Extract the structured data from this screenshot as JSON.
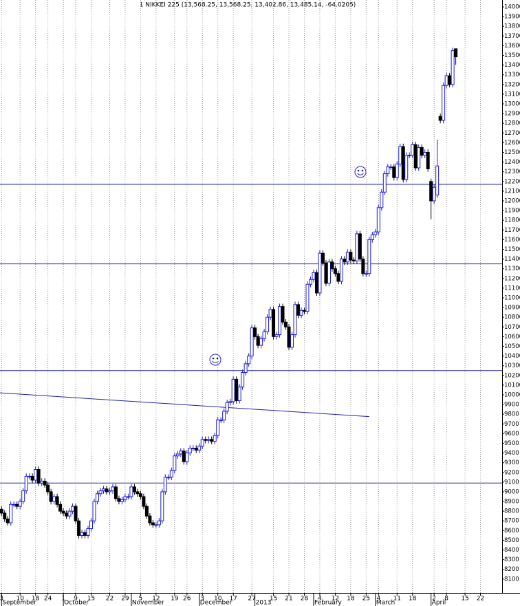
{
  "chart_data": {
    "type": "candlestick",
    "title": "1 NIKKEI 225 (13,568.25, 13,568.25, 13,402.86, 13,485.14, -64.0205)",
    "up_color": "#1a1adc",
    "down_color": "#000000",
    "line_color": "#2020b0",
    "grid": "x",
    "xlim": [
      -0.5,
      162
    ],
    "ylim": [
      7957,
      14071
    ],
    "x": [
      0,
      1,
      2,
      3,
      4,
      5,
      6,
      7,
      8,
      9,
      10,
      11,
      12,
      13,
      14,
      15,
      16,
      17,
      18,
      19,
      20,
      21,
      22,
      23,
      24,
      25,
      26,
      27,
      28,
      29,
      30,
      31,
      32,
      33,
      34,
      35,
      36,
      37,
      38,
      39,
      40,
      41,
      42,
      43,
      44,
      45,
      46,
      47,
      48,
      49,
      50,
      51,
      52,
      53,
      54,
      55,
      56,
      57,
      58,
      59,
      60,
      61,
      62,
      63,
      64,
      65,
      66,
      67,
      68,
      69,
      70,
      71,
      72,
      73,
      74,
      75,
      76,
      77,
      78,
      79,
      80,
      81,
      82,
      83,
      84,
      85,
      86,
      87,
      88,
      89,
      90,
      91,
      92,
      93,
      94,
      95,
      96,
      97,
      98,
      99,
      100,
      101,
      102,
      103,
      104,
      105,
      106,
      107,
      108,
      109,
      110,
      111,
      112,
      113,
      114,
      115,
      116,
      117,
      118,
      119,
      120,
      121,
      122,
      123,
      124,
      125,
      126,
      127,
      128,
      129,
      130,
      131,
      132,
      133,
      134,
      135,
      136,
      137,
      138,
      139,
      140,
      141,
      142,
      143,
      144,
      145,
      146,
      147
    ],
    "open": [
      8820,
      8780,
      8720,
      8680,
      8870,
      8870,
      8850,
      8900,
      9010,
      9160,
      9160,
      9120,
      9230,
      9090,
      9110,
      9070,
      9000,
      8900,
      8950,
      8870,
      8800,
      8780,
      8750,
      8800,
      8850,
      8700,
      8550,
      8580,
      8550,
      8620,
      8700,
      8900,
      8980,
      9010,
      9030,
      9000,
      9010,
      9050,
      8930,
      8900,
      8920,
      8950,
      8950,
      9050,
      9000,
      8980,
      8950,
      8850,
      8750,
      8680,
      8660,
      8660,
      8700,
      9000,
      9150,
      9150,
      9220,
      9370,
      9390,
      9420,
      9310,
      9400,
      9450,
      9450,
      9430,
      9470,
      9540,
      9530,
      9540,
      9520,
      9580,
      9740,
      9740,
      9830,
      9920,
      9930,
      10160,
      9940,
      10080,
      10230,
      10320,
      10400,
      10690,
      10600,
      10510,
      10580,
      10650,
      10800,
      10880,
      10600,
      10620,
      10910,
      10750,
      10700,
      10490,
      10620,
      10930,
      10820,
      10870,
      10860,
      11140,
      11190,
      11260,
      11050,
      11460,
      11360,
      11150,
      11370,
      11300,
      11250,
      11170,
      11400,
      11370,
      11470,
      11390,
      11380,
      11660,
      11400,
      11250,
      11250,
      11600,
      11650,
      11680,
      11930,
      12090,
      12280,
      12350,
      12350,
      12240,
      12380,
      12560,
      12220,
      12470,
      12470,
      12580,
      12340,
      12550,
      12470,
      12500,
      12200,
      12000,
      12060,
      12870,
      12830,
      13190,
      13290,
      13200,
      13568.25
    ],
    "high": [
      8850,
      8810,
      8750,
      8900,
      8900,
      8900,
      8930,
      9040,
      9190,
      9190,
      9190,
      9260,
      9260,
      9140,
      9140,
      9100,
      9030,
      8980,
      8980,
      8900,
      8830,
      8810,
      8830,
      8880,
      8880,
      8730,
      8610,
      8610,
      8650,
      8730,
      8930,
      9010,
      9040,
      9060,
      9060,
      9040,
      9080,
      9080,
      8960,
      8950,
      8980,
      8980,
      9080,
      9080,
      9030,
      9010,
      8980,
      8880,
      8780,
      8710,
      8690,
      8730,
      9030,
      9180,
      9180,
      9250,
      9400,
      9420,
      9450,
      9450,
      9430,
      9480,
      9480,
      9480,
      9500,
      9570,
      9570,
      9570,
      9570,
      9610,
      9770,
      9770,
      9860,
      9950,
      9960,
      10190,
      10190,
      10110,
      10260,
      10350,
      10430,
      10720,
      10720,
      10630,
      10610,
      10680,
      10830,
      10910,
      10910,
      10650,
      10940,
      10940,
      10780,
      10730,
      10650,
      10960,
      10960,
      10900,
      10900,
      11170,
      11220,
      11290,
      11290,
      11490,
      11490,
      11390,
      11400,
      11400,
      11330,
      11280,
      11430,
      11430,
      11500,
      11500,
      11420,
      11690,
      11690,
      11430,
      11280,
      11630,
      11680,
      11710,
      11960,
      12120,
      12310,
      12380,
      12380,
      12380,
      12410,
      12590,
      12590,
      12500,
      12500,
      12610,
      12610,
      12580,
      12580,
      12530,
      12530,
      12230,
      12170,
      12630,
      12900,
      13220,
      13320,
      13320,
      13580,
      13568.25
    ],
    "low": [
      8750,
      8690,
      8650,
      8650,
      8840,
      8820,
      8820,
      8870,
      8980,
      9130,
      9090,
      9090,
      9060,
      9060,
      9040,
      8970,
      8870,
      8870,
      8840,
      8770,
      8750,
      8720,
      8720,
      8770,
      8670,
      8520,
      8520,
      8520,
      8520,
      8590,
      8670,
      8870,
      8950,
      8980,
      8970,
      8970,
      8980,
      8900,
      8870,
      8870,
      8890,
      8920,
      8920,
      8970,
      8950,
      8920,
      8820,
      8720,
      8650,
      8630,
      8630,
      8630,
      8670,
      8970,
      9120,
      9120,
      9190,
      9340,
      9360,
      9280,
      9280,
      9370,
      9420,
      9400,
      9400,
      9440,
      9500,
      9500,
      9490,
      9490,
      9550,
      9710,
      9710,
      9800,
      9890,
      9900,
      9910,
      9910,
      10050,
      10200,
      10290,
      10370,
      10570,
      10480,
      10480,
      10550,
      10620,
      10770,
      10570,
      10570,
      10590,
      10720,
      10670,
      10460,
      10460,
      10590,
      10790,
      10790,
      10830,
      10830,
      11110,
      11160,
      11020,
      11020,
      11330,
      11120,
      11120,
      11270,
      11220,
      11140,
      11140,
      11340,
      11340,
      11360,
      11350,
      11350,
      11370,
      11220,
      11220,
      11220,
      11570,
      11620,
      11650,
      11900,
      12060,
      12250,
      12320,
      12210,
      12210,
      12350,
      12190,
      12190,
      12440,
      12440,
      12310,
      12310,
      12440,
      12440,
      12300,
      11810,
      11970,
      12030,
      12800,
      12800,
      13160,
      13170,
      13170,
      13402.86
    ],
    "close": [
      8780,
      8720,
      8680,
      8870,
      8870,
      8850,
      8900,
      9010,
      9160,
      9160,
      9120,
      9230,
      9090,
      9110,
      9070,
      9000,
      8900,
      8950,
      8870,
      8800,
      8780,
      8750,
      8800,
      8850,
      8700,
      8550,
      8580,
      8550,
      8620,
      8700,
      8900,
      8980,
      9010,
      9030,
      9000,
      9010,
      9050,
      8930,
      8900,
      8920,
      8950,
      8950,
      9050,
      9000,
      8980,
      8950,
      8850,
      8750,
      8680,
      8660,
      8660,
      8700,
      9000,
      9150,
      9150,
      9220,
      9370,
      9390,
      9420,
      9310,
      9400,
      9450,
      9450,
      9430,
      9470,
      9540,
      9530,
      9540,
      9520,
      9580,
      9740,
      9740,
      9830,
      9920,
      9930,
      10160,
      9940,
      10080,
      10230,
      10320,
      10400,
      10690,
      10600,
      10510,
      10580,
      10650,
      10800,
      10880,
      10600,
      10620,
      10910,
      10750,
      10700,
      10490,
      10620,
      10930,
      10820,
      10870,
      10860,
      11140,
      11190,
      11260,
      11050,
      11460,
      11360,
      11150,
      11370,
      11300,
      11250,
      11170,
      11400,
      11370,
      11470,
      11390,
      11380,
      11660,
      11400,
      11250,
      11250,
      11600,
      11650,
      11680,
      11930,
      12090,
      12280,
      12350,
      12350,
      12240,
      12380,
      12560,
      12220,
      12470,
      12470,
      12580,
      12340,
      12550,
      12470,
      12500,
      12330,
      12000,
      12140,
      12360,
      12830,
      13190,
      13290,
      13200,
      13550,
      13485.14
    ],
    "hlines": [
      9090,
      10250,
      11350,
      12170
    ],
    "trendline": {
      "x": [
        -0.5,
        119
      ],
      "y": [
        10020,
        9775
      ]
    },
    "xticks": [
      {
        "value": 0,
        "label": "3"
      },
      {
        "value": 6,
        "label": "10"
      },
      {
        "value": 11,
        "label": "18"
      },
      {
        "value": 15,
        "label": "24"
      },
      {
        "value": 20,
        "label": "1"
      },
      {
        "value": 24,
        "label": "9"
      },
      {
        "value": 29,
        "label": "15"
      },
      {
        "value": 35,
        "label": "22"
      },
      {
        "value": 40,
        "label": "29"
      },
      {
        "value": 45,
        "label": "5"
      },
      {
        "value": 50,
        "label": "12"
      },
      {
        "value": 56,
        "label": "19"
      },
      {
        "value": 60,
        "label": "26"
      },
      {
        "value": 65,
        "label": "3"
      },
      {
        "value": 70,
        "label": "10"
      },
      {
        "value": 75,
        "label": "17"
      },
      {
        "value": 81,
        "label": "27"
      },
      {
        "value": 88,
        "label": "15"
      },
      {
        "value": 93,
        "label": "21"
      },
      {
        "value": 98,
        "label": "28"
      },
      {
        "value": 103,
        "label": "4"
      },
      {
        "value": 108,
        "label": "12"
      },
      {
        "value": 113,
        "label": "18"
      },
      {
        "value": 118,
        "label": "25"
      },
      {
        "value": 122,
        "label": "4"
      },
      {
        "value": 128,
        "label": "11"
      },
      {
        "value": 133,
        "label": "18"
      },
      {
        "value": 140,
        "label": "2"
      },
      {
        "value": 144,
        "label": "8"
      },
      {
        "value": 150,
        "label": "15"
      },
      {
        "value": 155,
        "label": "22"
      }
    ],
    "month_ticks": [
      {
        "value": 0,
        "label": "September"
      },
      {
        "value": 20,
        "label": "October"
      },
      {
        "value": 42,
        "label": "November"
      },
      {
        "value": 64,
        "label": "December"
      },
      {
        "value": 82,
        "label": "2013"
      },
      {
        "value": 101,
        "label": "February"
      },
      {
        "value": 121,
        "label": "March"
      },
      {
        "value": 139,
        "label": "April"
      }
    ],
    "yticks": [
      8100,
      8200,
      8300,
      8400,
      8500,
      8600,
      8700,
      8800,
      8900,
      9000,
      9100,
      9200,
      9300,
      9400,
      9500,
      9600,
      9700,
      9800,
      9900,
      10000,
      10100,
      10200,
      10300,
      10400,
      10500,
      10600,
      10700,
      10800,
      10900,
      11000,
      11100,
      11200,
      11300,
      11400,
      11500,
      11600,
      11700,
      11800,
      11900,
      12000,
      12100,
      12200,
      12300,
      12400,
      12500,
      12600,
      12700,
      12800,
      12900,
      13000,
      13100,
      13200,
      13300,
      13400,
      13500,
      13600,
      13700,
      13800,
      13900,
      14000
    ]
  }
}
